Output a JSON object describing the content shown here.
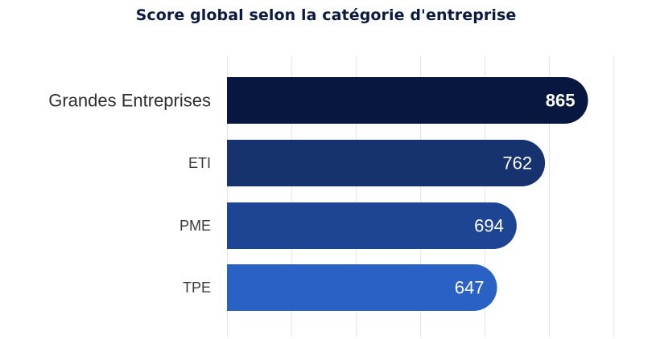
{
  "chart_data": {
    "type": "bar",
    "orientation": "horizontal",
    "title": "Score global selon la catégorie d'entreprise",
    "categories": [
      "Grandes Entreprises",
      "ETI",
      "PME",
      "TPE"
    ],
    "values": [
      865,
      762,
      694,
      647
    ],
    "xlim": [
      0,
      1000
    ],
    "grid": true,
    "legend": "none",
    "colors": [
      "#07173f",
      "#163370",
      "#1d4594",
      "#2962c4"
    ],
    "gridline_color": "#e3e5ea",
    "title_color": "#0a1a40"
  }
}
